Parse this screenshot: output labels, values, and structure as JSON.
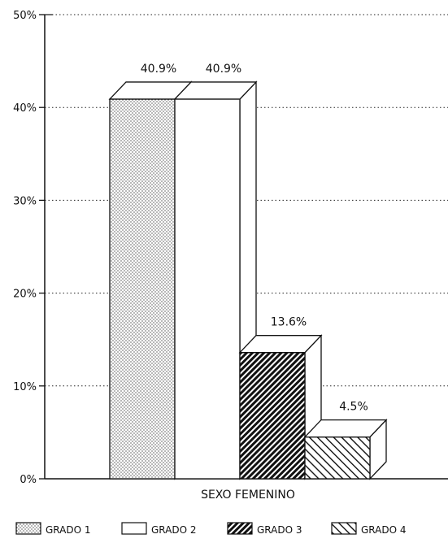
{
  "chart_data": {
    "type": "bar",
    "categories": [
      "SEXO FEMENINO"
    ],
    "series": [
      {
        "name": "GRADO 1",
        "values": [
          40.9
        ],
        "label": "40.9%"
      },
      {
        "name": "GRADO 2",
        "values": [
          40.9
        ],
        "label": "40.9%"
      },
      {
        "name": "GRADO 3",
        "values": [
          13.6
        ],
        "label": "13.6%"
      },
      {
        "name": "GRADO 4",
        "values": [
          4.5
        ],
        "label": "4.5%"
      }
    ],
    "ylim": [
      0,
      50
    ],
    "yticks": [
      "0%",
      "10%",
      "20%",
      "30%",
      "40%",
      "50%"
    ],
    "grid": true,
    "legend_placement": "bottom",
    "style": "3d"
  }
}
